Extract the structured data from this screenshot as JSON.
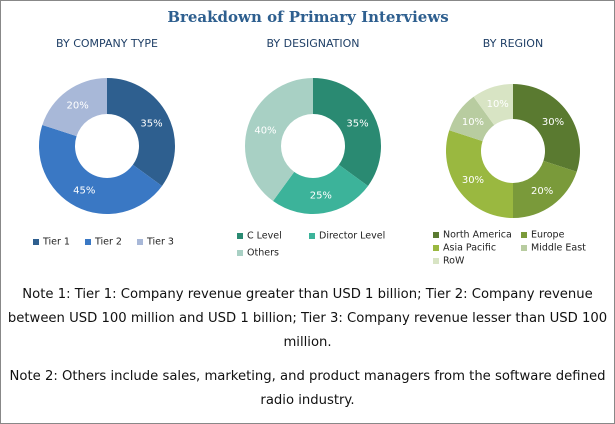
{
  "title": "Breakdown of Primary Interviews",
  "chart_data": [
    {
      "type": "pie",
      "title": "BY COMPANY TYPE",
      "categories": [
        "Tier 1",
        "Tier 2",
        "Tier 3"
      ],
      "values": [
        35,
        45,
        20
      ],
      "value_labels": [
        "35%",
        "45%",
        "20%"
      ],
      "colors": [
        "#2e5f8f",
        "#3a78c4",
        "#a8b8d8"
      ]
    },
    {
      "type": "pie",
      "title": "BY DESIGNATION",
      "categories": [
        "C Level",
        "Director Level",
        "Others"
      ],
      "values": [
        35,
        25,
        40
      ],
      "value_labels": [
        "35%",
        "25%",
        "40%"
      ],
      "colors": [
        "#2a8a72",
        "#3cb39a",
        "#a8d0c4"
      ]
    },
    {
      "type": "pie",
      "title": "BY REGION",
      "categories": [
        "North America",
        "Europe",
        "Asia Pacific",
        "Middle East",
        "RoW"
      ],
      "values": [
        30,
        20,
        30,
        10,
        10
      ],
      "value_labels": [
        "30%",
        "20%",
        "30%",
        "10%",
        "10%"
      ],
      "colors": [
        "#5a7a30",
        "#7a9a3a",
        "#9ab840",
        "#b8cca0",
        "#d8e4c4"
      ]
    }
  ],
  "notes": [
    "Note 1: Tier 1: Company revenue greater than USD 1 billion; Tier 2: Company revenue between USD 100 million and USD 1 billion; Tier 3: Company revenue lesser than USD 100 million.",
    "Note 2: Others include sales, marketing, and product managers from the software defined radio industry."
  ]
}
